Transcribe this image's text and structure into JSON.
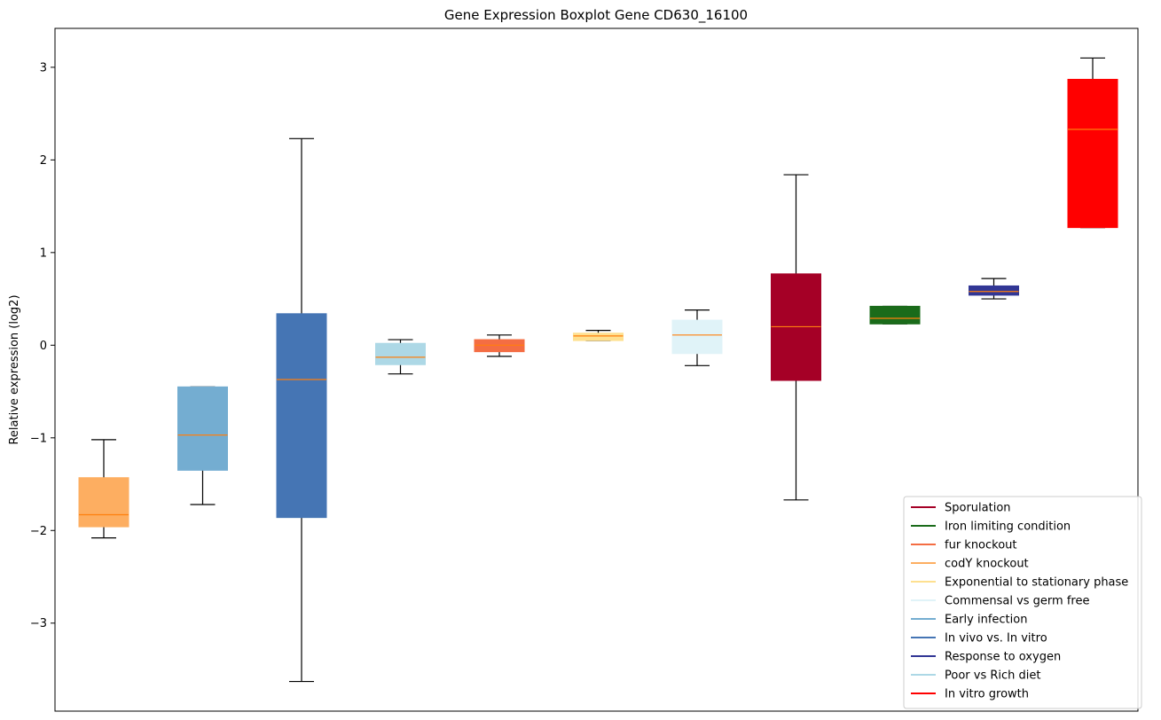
{
  "chart_data": {
    "type": "box",
    "title": "Gene Expression Boxplot Gene CD630_16100",
    "xlabel": "",
    "ylabel": "Relative expression (log2)",
    "ylim": [
      -3.95,
      3.42
    ],
    "yticks": [
      -3,
      -2,
      -1,
      0,
      1,
      2,
      3
    ],
    "ytick_labels": [
      "−3",
      "−2",
      "−1",
      "0",
      "1",
      "2",
      "3"
    ],
    "grid": false,
    "legend_position": "lower right",
    "median_color": "#ff7f0e",
    "boxes": [
      {
        "color": "#fdae61",
        "whislo": -2.08,
        "q1": -1.96,
        "med": -1.83,
        "q3": -1.43,
        "whishi": -1.02
      },
      {
        "color": "#74add1",
        "whislo": -1.72,
        "q1": -1.35,
        "med": -0.97,
        "q3": -0.45,
        "whishi": -0.45
      },
      {
        "color": "#4575b4",
        "whislo": -3.63,
        "q1": -1.86,
        "med": -0.37,
        "q3": 0.34,
        "whishi": 2.23
      },
      {
        "color": "#add8e6",
        "whislo": -0.31,
        "q1": -0.21,
        "med": -0.13,
        "q3": 0.02,
        "whishi": 0.06
      },
      {
        "color": "#f46d43",
        "whislo": -0.12,
        "q1": -0.07,
        "med": 0.0,
        "q3": 0.06,
        "whishi": 0.11
      },
      {
        "color": "#fee090",
        "whislo": 0.05,
        "q1": 0.05,
        "med": 0.1,
        "q3": 0.13,
        "whishi": 0.16
      },
      {
        "color": "#e0f3f8",
        "whislo": -0.22,
        "q1": -0.09,
        "med": 0.11,
        "q3": 0.27,
        "whishi": 0.38
      },
      {
        "color": "#a50026",
        "whislo": -1.67,
        "q1": -0.38,
        "med": 0.2,
        "q3": 0.77,
        "whishi": 1.84
      },
      {
        "color": "#1a6b1a",
        "whislo": 0.23,
        "q1": 0.23,
        "med": 0.29,
        "q3": 0.42,
        "whishi": 0.42
      },
      {
        "color": "#313695",
        "whislo": 0.5,
        "q1": 0.54,
        "med": 0.58,
        "q3": 0.64,
        "whishi": 0.72
      },
      {
        "color": "#ff0000",
        "whislo": 1.27,
        "q1": 1.27,
        "med": 2.33,
        "q3": 2.87,
        "whishi": 3.1
      }
    ],
    "legend": [
      {
        "label": "Sporulation",
        "color": "#a50026"
      },
      {
        "label": "Iron limiting condition",
        "color": "#1a6b1a"
      },
      {
        "label": "fur knockout",
        "color": "#f46d43"
      },
      {
        "label": "codY knockout",
        "color": "#fdae61"
      },
      {
        "label": "Exponential to stationary phase",
        "color": "#fee090"
      },
      {
        "label": "Commensal vs germ free",
        "color": "#e0f3f8"
      },
      {
        "label": "Early infection",
        "color": "#74add1"
      },
      {
        "label": "In vivo vs. In vitro",
        "color": "#4575b4"
      },
      {
        "label": "Response to oxygen",
        "color": "#313695"
      },
      {
        "label": "Poor vs Rich diet",
        "color": "#add8e6"
      },
      {
        "label": "In vitro growth",
        "color": "#ff0000"
      }
    ]
  }
}
